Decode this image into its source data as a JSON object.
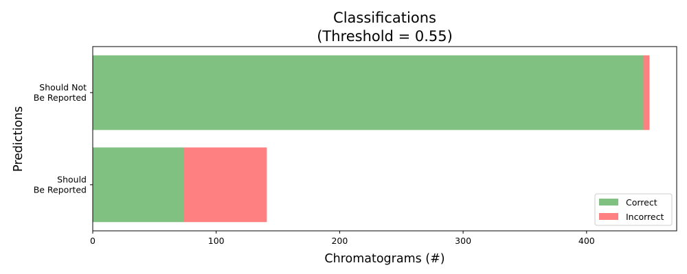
{
  "chart_data": {
    "type": "bar",
    "orientation": "horizontal",
    "stacked": true,
    "title": [
      "Classifications",
      "(Threshold = 0.55)"
    ],
    "xlabel": "Chromatograms (#)",
    "ylabel": "Predictions",
    "categories": [
      [
        "Should Not",
        "Be Reported"
      ],
      [
        "Should",
        "Be Reported"
      ]
    ],
    "series": [
      {
        "name": "Correct",
        "color": "#80c080",
        "values": [
          446,
          74
        ]
      },
      {
        "name": "Incorrect",
        "color": "#ff8080",
        "values": [
          5,
          67
        ]
      }
    ],
    "xlim": [
      0,
      473
    ],
    "xticks": [
      0,
      100,
      200,
      300,
      400
    ],
    "xtick_labels": [
      "0",
      "100",
      "200",
      "300",
      "400"
    ],
    "grid": false,
    "legend_position": "lower-right"
  }
}
